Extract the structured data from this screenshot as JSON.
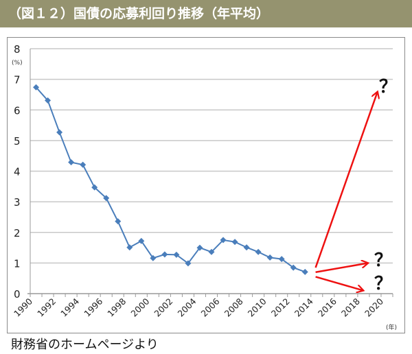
{
  "header": {
    "title": "（図１２）国債の応募利回り推移（年平均）"
  },
  "source": "財務省のホームページより",
  "colors": {
    "header_bg": "#95936f",
    "series": "#4a7ebb",
    "arrow": "#ee1111",
    "grid": "#c8c8c8"
  },
  "chart_data": {
    "type": "line",
    "title": "国債の応募利回り推移（年平均）",
    "ylabel": "(%)",
    "xlabel": "(年)",
    "ylim": [
      0,
      8
    ],
    "yticks": [
      "0",
      "1",
      "2",
      "3",
      "4",
      "5",
      "6",
      "7",
      "8"
    ],
    "xticks": [
      "1990",
      "1992",
      "1994",
      "1996",
      "1998",
      "2000",
      "2002",
      "2004",
      "2006",
      "2008",
      "2010",
      "2012",
      "2014",
      "2016",
      "2018",
      "2020"
    ],
    "x_range": [
      1990,
      2020
    ],
    "grid": true,
    "series": [
      {
        "name": "国債の応募利回り",
        "x": [
          1990,
          1991,
          1992,
          1993,
          1994,
          1995,
          1996,
          1997,
          1998,
          1999,
          2000,
          2001,
          2002,
          2003,
          2004,
          2005,
          2006,
          2007,
          2008,
          2009,
          2010,
          2011,
          2012,
          2013
        ],
        "values": [
          6.74,
          6.31,
          5.27,
          4.29,
          4.21,
          3.47,
          3.12,
          2.36,
          1.51,
          1.72,
          1.16,
          1.28,
          1.27,
          0.99,
          1.5,
          1.36,
          1.75,
          1.69,
          1.51,
          1.36,
          1.18,
          1.13,
          0.85,
          0.71
        ]
      }
    ],
    "annotations": [
      {
        "type": "arrow",
        "from": [
          2014.4,
          0.85
        ],
        "to": [
          2019.7,
          6.6
        ],
        "label": "？"
      },
      {
        "type": "arrow",
        "from": [
          2014.4,
          0.7
        ],
        "to": [
          2018.9,
          1.0
        ],
        "label": "？"
      },
      {
        "type": "arrow",
        "from": [
          2014.4,
          0.55
        ],
        "to": [
          2018.5,
          0.1
        ],
        "label": "？"
      }
    ]
  }
}
